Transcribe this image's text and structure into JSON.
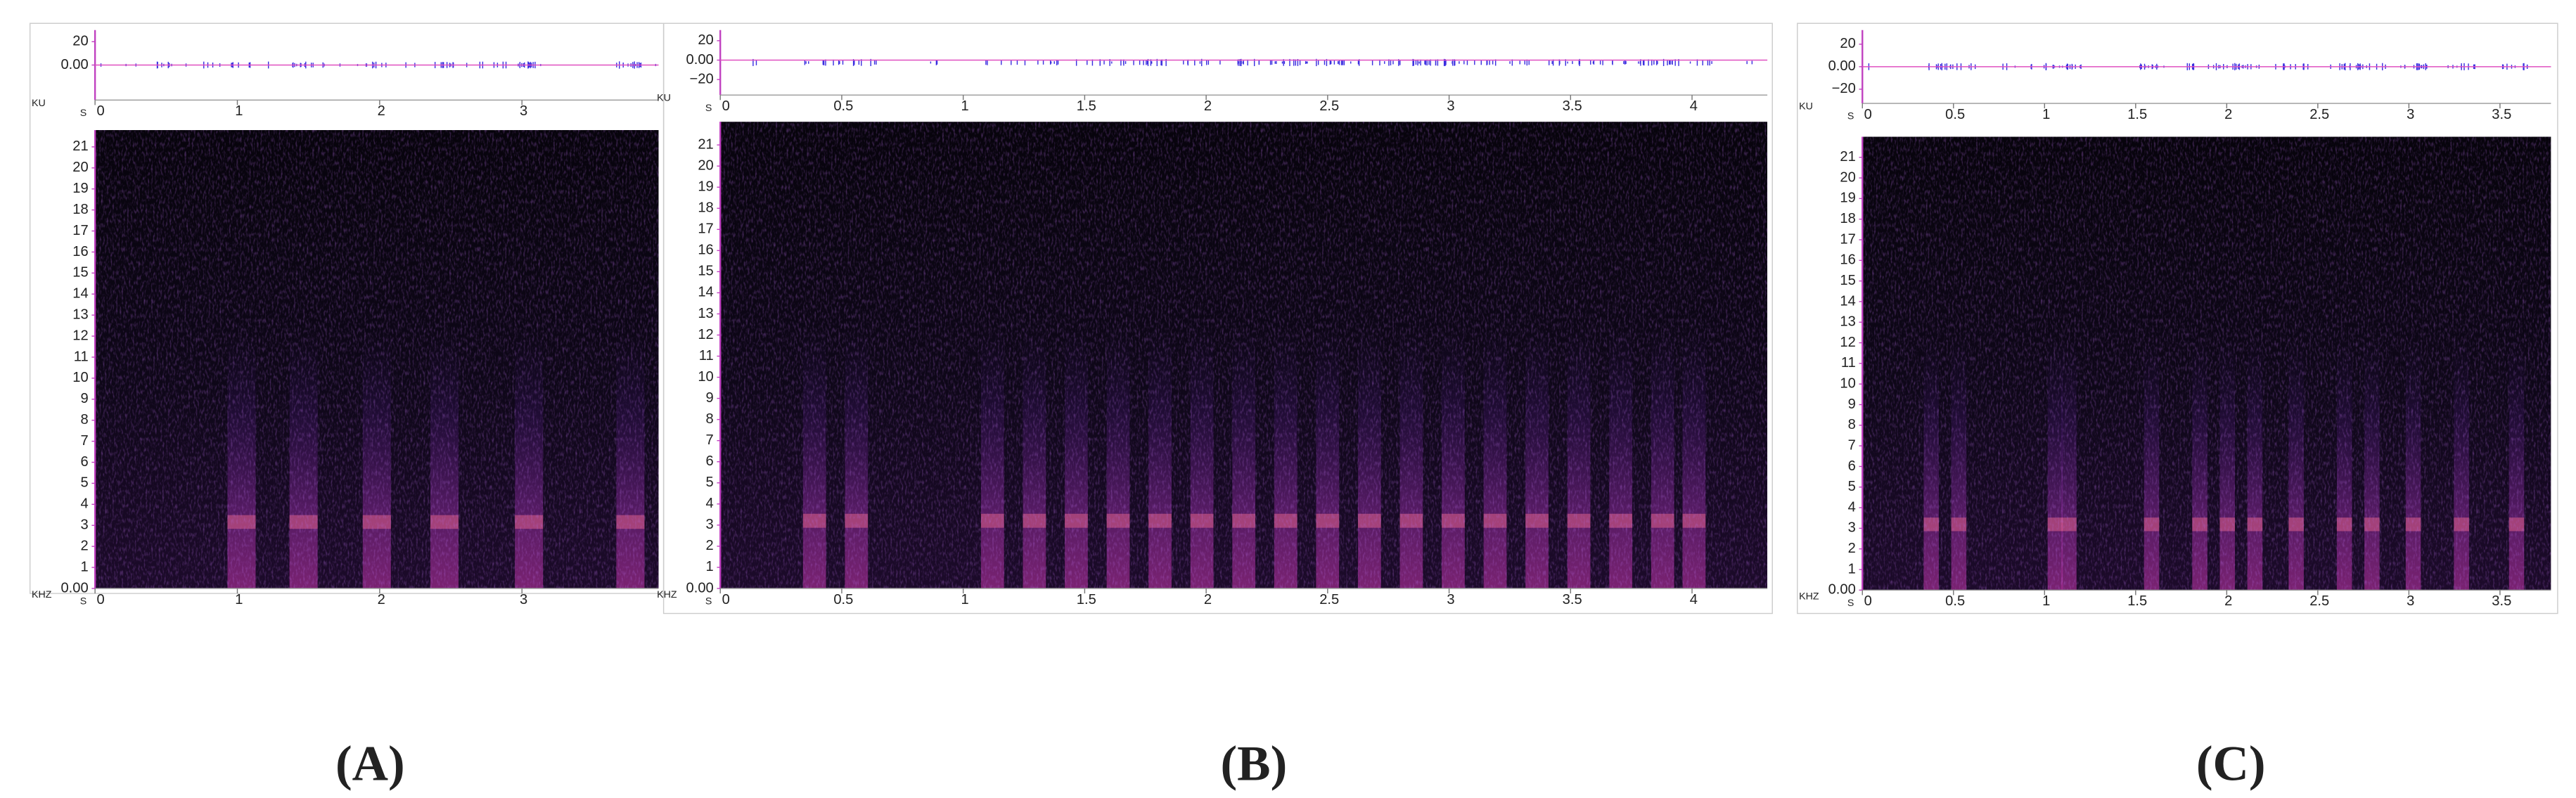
{
  "chart_data": [
    {
      "type": "spectrogram",
      "panel_label": "(A)",
      "xlabel": "S",
      "ylabel": "KHZ",
      "xlim": [
        0,
        3.96
      ],
      "xticks": [
        0,
        1,
        2,
        3
      ],
      "ylim": [
        0,
        21.8
      ],
      "yticks": [
        {
          "value": 0,
          "label": "0.00"
        },
        1,
        2,
        3,
        4,
        5,
        6,
        7,
        8,
        9,
        10,
        11,
        12,
        13,
        14,
        15,
        16,
        17,
        18,
        19,
        20,
        21
      ],
      "waveform": {
        "ylabel": "KU",
        "ylim": [
          -30,
          30
        ],
        "yticks": [
          {
            "value": 0,
            "label": "0.00"
          },
          20
        ]
      }
    },
    {
      "type": "spectrogram",
      "panel_label": "(B)",
      "xlabel": "S",
      "ylabel": "KHZ",
      "xlim": [
        0,
        4.31
      ],
      "xticks": [
        0,
        0.5,
        1,
        1.5,
        2,
        2.5,
        3,
        3.5,
        4
      ],
      "ylim": [
        0,
        22.1
      ],
      "yticks": [
        {
          "value": 0,
          "label": "0.00"
        },
        1,
        2,
        3,
        4,
        5,
        6,
        7,
        8,
        9,
        10,
        11,
        12,
        13,
        14,
        15,
        16,
        17,
        18,
        19,
        20,
        21
      ],
      "waveform": {
        "ylabel": "KU",
        "ylim": [
          -36,
          31
        ],
        "yticks": [
          {
            "value": -20,
            "label": "−20"
          },
          {
            "value": 0,
            "label": "0.00"
          },
          20
        ]
      }
    },
    {
      "type": "spectrogram",
      "panel_label": "(C)",
      "xlabel": "S",
      "ylabel": "KHZ",
      "xlim": [
        0,
        3.78
      ],
      "xticks": [
        0,
        0.5,
        1,
        1.5,
        2,
        2.5,
        3,
        3.5
      ],
      "ylim": [
        0,
        22
      ],
      "yticks": [
        {
          "value": 0,
          "label": "0.00"
        },
        1,
        2,
        3,
        4,
        5,
        6,
        7,
        8,
        9,
        10,
        11,
        12,
        13,
        14,
        15,
        16,
        17,
        18,
        19,
        20,
        21
      ],
      "waveform": {
        "ylabel": "KU",
        "ylim": [
          -32.6,
          32.6
        ],
        "yticks": [
          {
            "value": -20,
            "label": "−20"
          },
          {
            "value": 0,
            "label": "0.00"
          },
          20
        ]
      }
    }
  ]
}
